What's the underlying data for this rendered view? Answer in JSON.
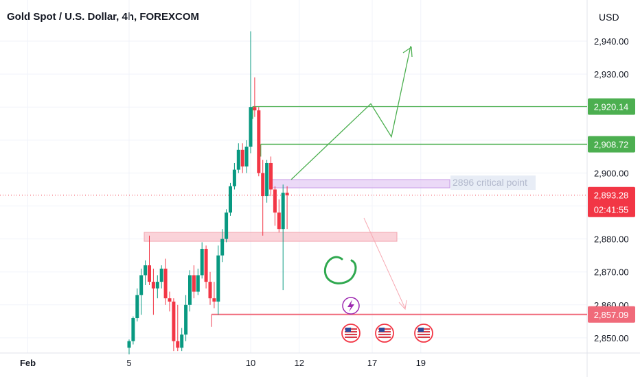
{
  "header": {
    "title": "Gold Spot / U.S. Dollar, 4h, FOREXCOM",
    "currency": "USD"
  },
  "chart_data": {
    "type": "candlestick",
    "title": "Gold Spot / U.S. Dollar, 4h, FOREXCOM",
    "ylabel": "USD",
    "ylim": [
      2847.5,
      2949
    ],
    "y_ticks": [
      2850,
      2860,
      2870,
      2880,
      2890,
      2900,
      2910,
      2920,
      2930,
      2940
    ],
    "y_tick_labels": [
      "2,850.00",
      "2,860.00",
      "2,870.00",
      "2,880.00",
      "2,890.00",
      "2,900.00",
      "2,910.00",
      "2,920.00",
      "2,930.00",
      "2,940.00"
    ],
    "x_ticks": [
      {
        "label": "Feb",
        "index": -25
      },
      {
        "label": "5",
        "index": 0
      },
      {
        "label": "10",
        "index": 30
      },
      {
        "label": "12",
        "index": 42
      },
      {
        "label": "17",
        "index": 60
      },
      {
        "label": "19",
        "index": 72
      }
    ],
    "candles": [
      {
        "o": 2847.0,
        "h": 2849.5,
        "l": 2845.0,
        "c": 2849.0
      },
      {
        "o": 2849.0,
        "h": 2856.5,
        "l": 2848.0,
        "c": 2856.0
      },
      {
        "o": 2856.0,
        "h": 2865.0,
        "l": 2855.0,
        "c": 2863.0
      },
      {
        "o": 2863.0,
        "h": 2871.0,
        "l": 2857.0,
        "c": 2869.0
      },
      {
        "o": 2869.0,
        "h": 2873.5,
        "l": 2866.0,
        "c": 2872.0
      },
      {
        "o": 2872.0,
        "h": 2881.0,
        "l": 2866.0,
        "c": 2867.0
      },
      {
        "o": 2867.0,
        "h": 2871.0,
        "l": 2857.0,
        "c": 2865.0
      },
      {
        "o": 2865.0,
        "h": 2869.0,
        "l": 2862.0,
        "c": 2867.0
      },
      {
        "o": 2867.0,
        "h": 2872.0,
        "l": 2865.0,
        "c": 2871.0
      },
      {
        "o": 2871.0,
        "h": 2874.0,
        "l": 2860.0,
        "c": 2862.0
      },
      {
        "o": 2862.0,
        "h": 2864.0,
        "l": 2858.0,
        "c": 2861.0
      },
      {
        "o": 2861.0,
        "h": 2862.0,
        "l": 2846.0,
        "c": 2849.0
      },
      {
        "o": 2849.0,
        "h": 2860.0,
        "l": 2846.0,
        "c": 2847.0
      },
      {
        "o": 2847.0,
        "h": 2853.0,
        "l": 2846.0,
        "c": 2851.0
      },
      {
        "o": 2851.0,
        "h": 2863.0,
        "l": 2849.0,
        "c": 2860.0
      },
      {
        "o": 2860.0,
        "h": 2870.5,
        "l": 2858.0,
        "c": 2869.0
      },
      {
        "o": 2869.0,
        "h": 2872.0,
        "l": 2862.0,
        "c": 2864.0
      },
      {
        "o": 2864.0,
        "h": 2871.0,
        "l": 2863.0,
        "c": 2869.0
      },
      {
        "o": 2869.0,
        "h": 2879.0,
        "l": 2868.0,
        "c": 2877.0
      },
      {
        "o": 2877.0,
        "h": 2878.0,
        "l": 2865.0,
        "c": 2867.0
      },
      {
        "o": 2867.0,
        "h": 2870.0,
        "l": 2860.0,
        "c": 2862.0
      },
      {
        "o": 2862.0,
        "h": 2867.0,
        "l": 2859.0,
        "c": 2861.0
      },
      {
        "o": 2861.0,
        "h": 2878.0,
        "l": 2857.0,
        "c": 2875.0
      },
      {
        "o": 2875.0,
        "h": 2883.0,
        "l": 2873.0,
        "c": 2880.0
      },
      {
        "o": 2880.0,
        "h": 2889.0,
        "l": 2879.0,
        "c": 2888.0
      },
      {
        "o": 2888.0,
        "h": 2897.0,
        "l": 2887.0,
        "c": 2896.0
      },
      {
        "o": 2896.0,
        "h": 2903.0,
        "l": 2895.0,
        "c": 2901.0
      },
      {
        "o": 2901.0,
        "h": 2909.0,
        "l": 2900.0,
        "c": 2907.0
      },
      {
        "o": 2907.0,
        "h": 2909.0,
        "l": 2900.0,
        "c": 2902.0
      },
      {
        "o": 2902.0,
        "h": 2910.0,
        "l": 2900.0,
        "c": 2908.0
      },
      {
        "o": 2908.0,
        "h": 2943.0,
        "l": 2906.0,
        "c": 2920.0
      },
      {
        "o": 2920.0,
        "h": 2929.0,
        "l": 2917.0,
        "c": 2919.0
      },
      {
        "o": 2919.0,
        "h": 2920.0,
        "l": 2899.0,
        "c": 2900.0
      },
      {
        "o": 2900.0,
        "h": 2904.0,
        "l": 2881.0,
        "c": 2893.0
      },
      {
        "o": 2893.0,
        "h": 2904.0,
        "l": 2891.0,
        "c": 2903.0
      },
      {
        "o": 2903.0,
        "h": 2905.0,
        "l": 2893.0,
        "c": 2895.0
      },
      {
        "o": 2895.0,
        "h": 2896.0,
        "l": 2884.0,
        "c": 2888.0
      },
      {
        "o": 2888.0,
        "h": 2892.0,
        "l": 2882.0,
        "c": 2883.0
      },
      {
        "o": 2883.0,
        "h": 2896.5,
        "l": 2864.5,
        "c": 2894.0
      },
      {
        "o": 2894.0,
        "h": 2896.0,
        "l": 2883.0,
        "c": 2893.28
      }
    ],
    "horizontal_levels": [
      {
        "price": 2920.14,
        "label": "2,920.14",
        "color": "#4caf50"
      },
      {
        "price": 2908.72,
        "label": "2,908.72",
        "color": "#4caf50"
      },
      {
        "price": 2857.09,
        "label": "2,857.09",
        "color": "#f06a7a"
      }
    ],
    "current_price": {
      "label": "2,893.28",
      "countdown": "02:41:55",
      "color": "#f23645",
      "price": 2893.28
    },
    "zones": [
      {
        "label": "2896 critical point",
        "color": "#e3c9f4",
        "y_top": 2898.0,
        "y_bottom": 2895.5
      },
      {
        "label": "",
        "color": "#f9c8cf",
        "y_top": 2882.0,
        "y_bottom": 2879.7
      }
    ],
    "colors": {
      "up": "#089981",
      "down": "#f23645",
      "grid": "#f0f3fa",
      "text": "#131722"
    }
  }
}
